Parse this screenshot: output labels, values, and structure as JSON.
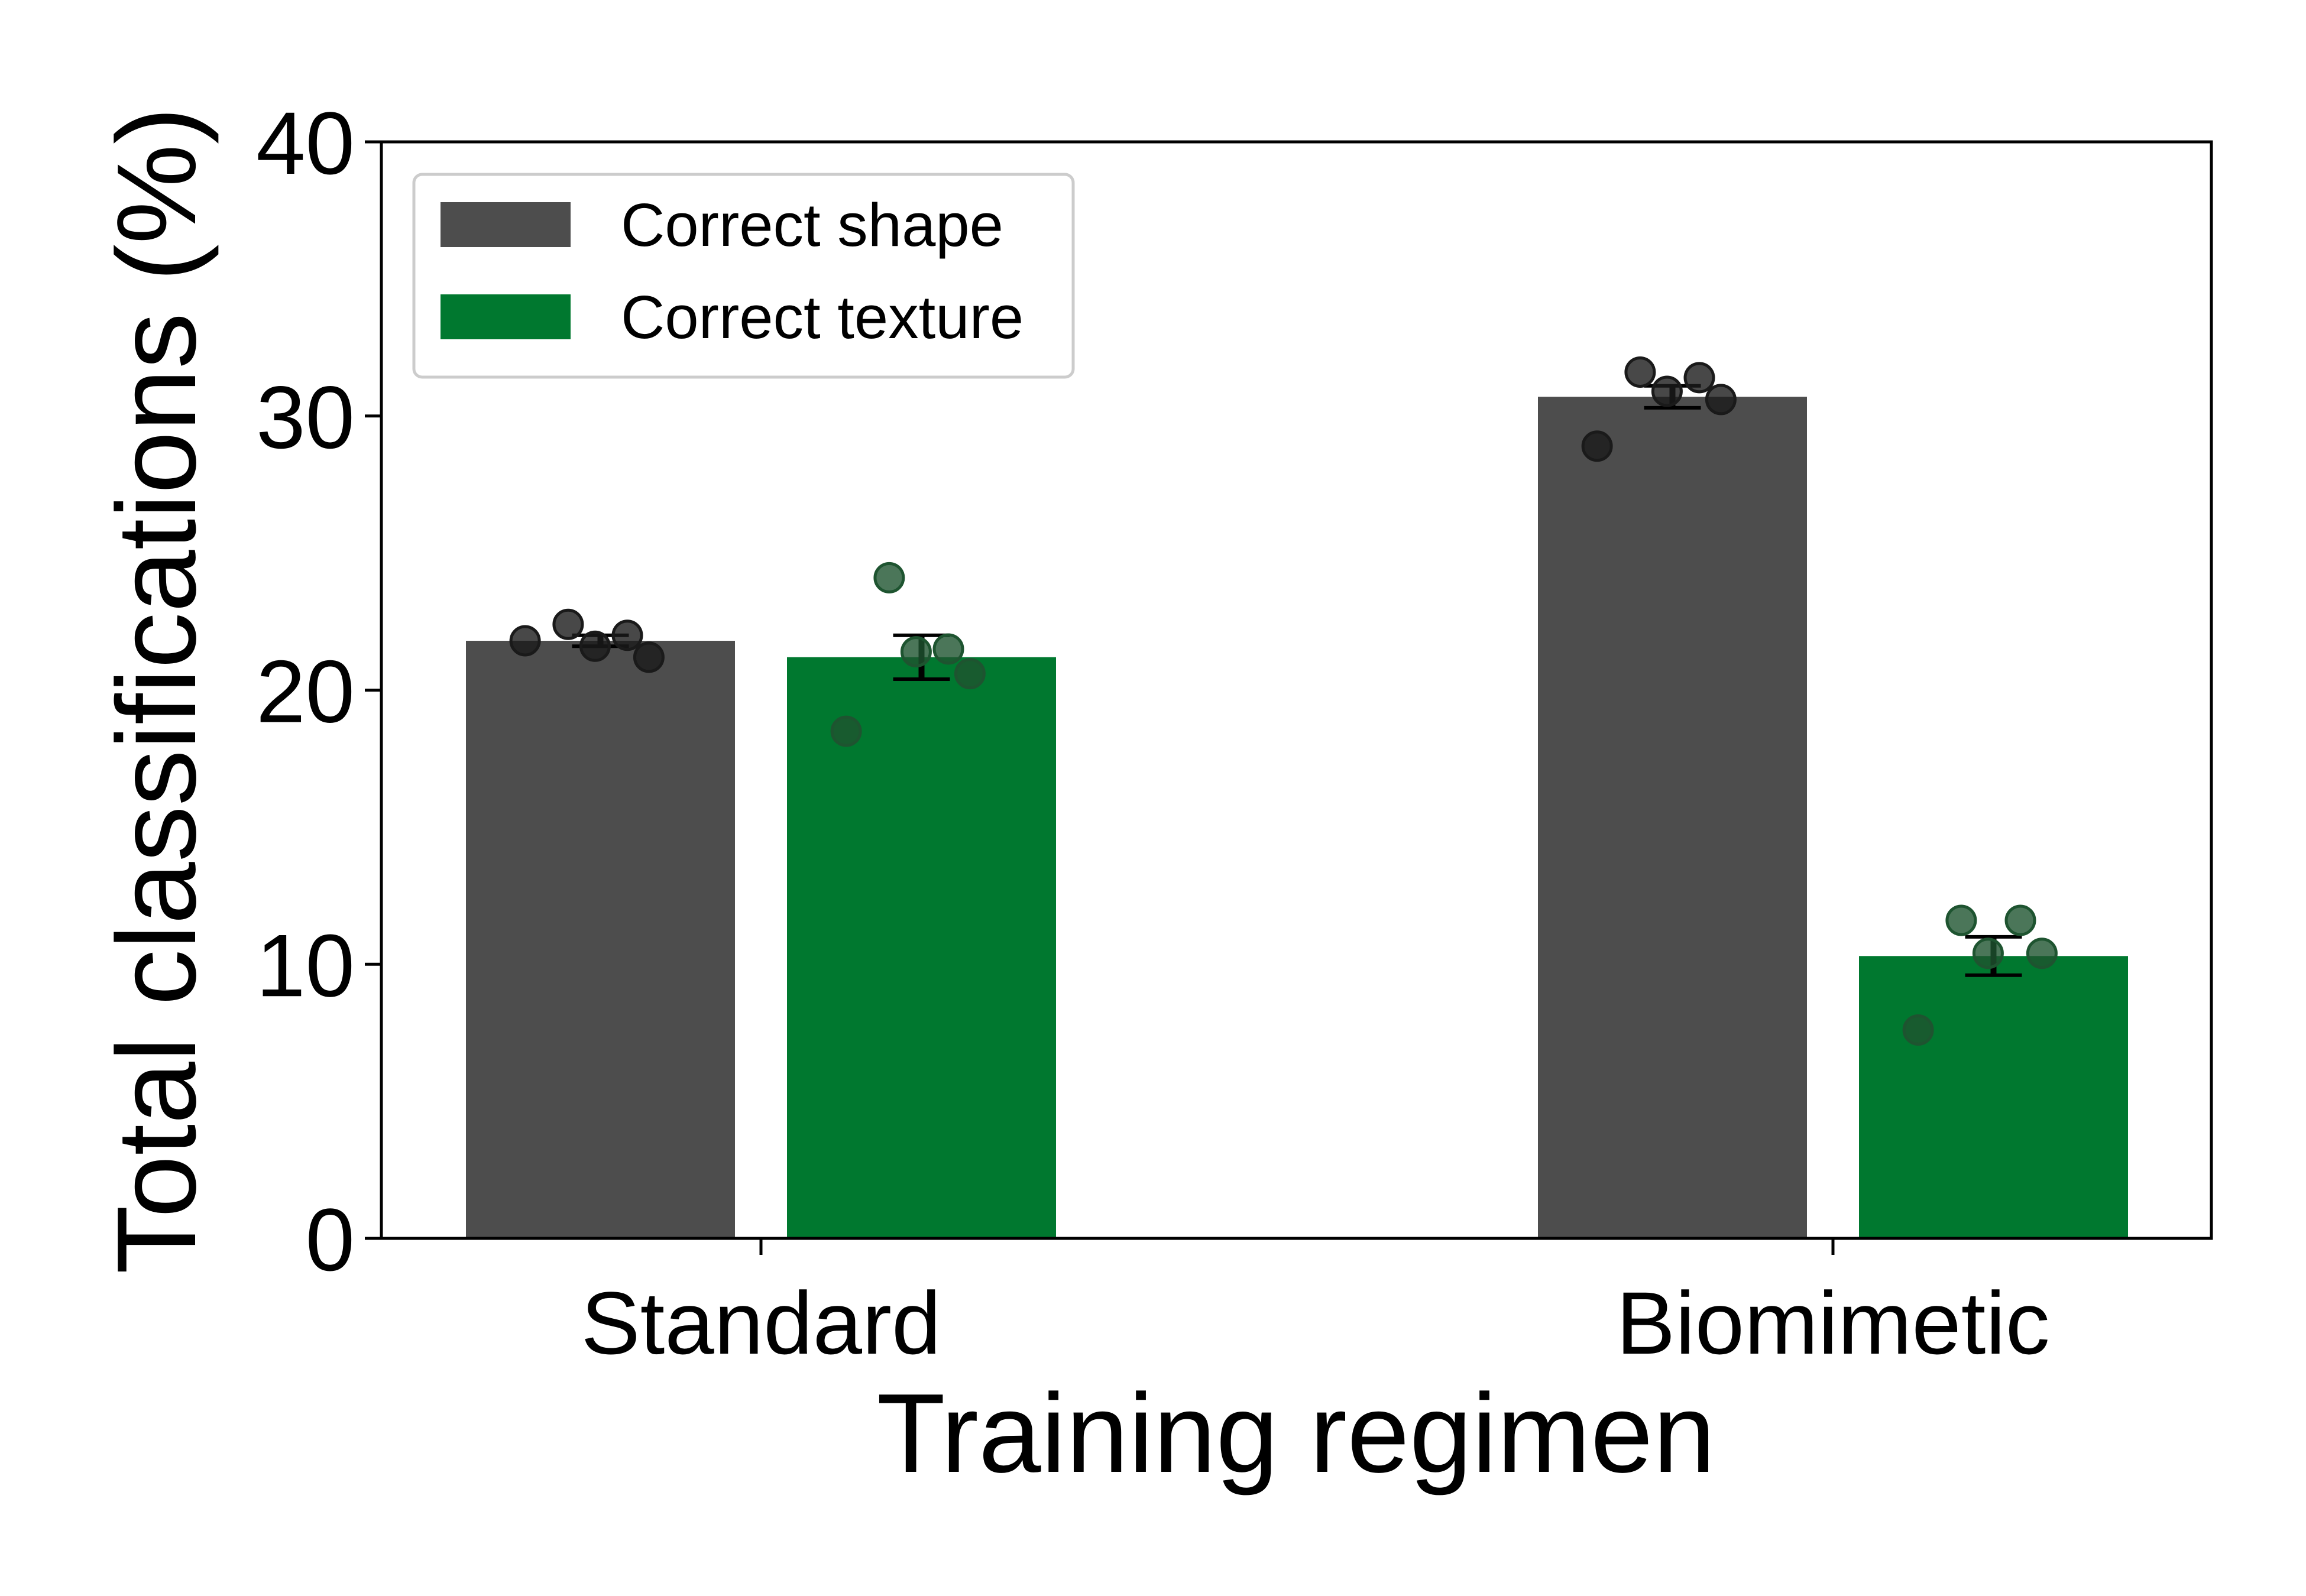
{
  "chart_data": {
    "type": "bar",
    "title": "",
    "xlabel": "Training regimen",
    "ylabel": "Total classifications (%)",
    "categories": [
      "Standard",
      "Biomimetic"
    ],
    "ylim": [
      0,
      40
    ],
    "yticks": [
      0,
      10,
      20,
      30,
      40
    ],
    "grid": false,
    "legend_position": "top-left",
    "series": [
      {
        "name": "Correct shape",
        "color": "#4d4d4d",
        "point_color": "#1a1a1a",
        "values": [
          21.8,
          30.7
        ],
        "error": [
          0.2,
          0.4
        ],
        "points": [
          [
            22.4,
            22.0,
            21.6,
            21.2,
            21.8
          ],
          [
            31.6,
            31.4,
            30.9,
            30.6,
            28.9
          ]
        ]
      },
      {
        "name": "Correct texture",
        "color": "#00782f",
        "point_color": "#1e5430",
        "values": [
          21.2,
          10.3
        ],
        "error": [
          0.8,
          0.7
        ],
        "points": [
          [
            24.1,
            21.5,
            21.4,
            20.6,
            18.5
          ],
          [
            11.6,
            11.6,
            10.4,
            10.4,
            7.6
          ]
        ]
      }
    ]
  }
}
